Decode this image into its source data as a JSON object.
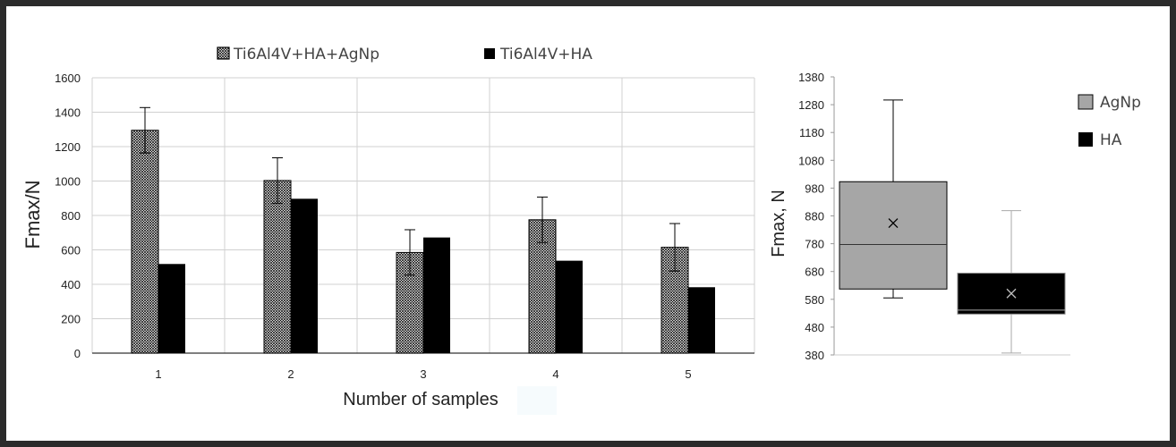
{
  "chart_data": [
    {
      "type": "bar",
      "xlabel": "Number of samples",
      "ylabel": "Fmax/N",
      "ylim": [
        0,
        1600
      ],
      "y_ticks": [
        "0",
        "200",
        "400",
        "600",
        "800",
        "1000",
        "1200",
        "1400",
        "1600"
      ],
      "categories": [
        "1",
        "2",
        "3",
        "4",
        "5"
      ],
      "grid": true,
      "legend_position": "top",
      "series": [
        {
          "name": "Ti6Al4V+HA+AgNp",
          "values": [
            1295,
            1003,
            585,
            775,
            615
          ],
          "error": [
            132,
            132,
            132,
            132,
            138
          ],
          "pattern": "crosshatch"
        },
        {
          "name": "Ti6Al4V+HA",
          "values": [
            518,
            897,
            672,
            537,
            383
          ],
          "pattern": "solid",
          "color": "#000000"
        }
      ]
    },
    {
      "type": "box",
      "ylabel": "Fmax, N",
      "ylim": [
        380,
        1380
      ],
      "y_ticks": [
        "380",
        "480",
        "580",
        "680",
        "780",
        "880",
        "980",
        "1080",
        "1180",
        "1280",
        "1380"
      ],
      "legend_position": "top-right",
      "series": [
        {
          "name": "AgNp",
          "min": 585,
          "q1": 617,
          "median": 777,
          "q3": 1003,
          "max": 1297,
          "mean": 854,
          "color": "#a6a6a6"
        },
        {
          "name": "HA",
          "min": 387,
          "q1": 527,
          "median": 541,
          "q3": 674,
          "max": 899,
          "mean": 601,
          "color": "#000000"
        }
      ]
    }
  ]
}
